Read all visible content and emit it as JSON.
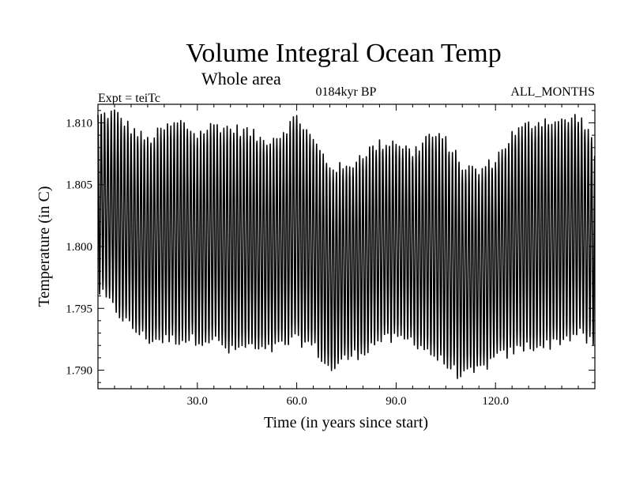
{
  "chart_data": {
    "type": "line",
    "title": "Volume Integral Ocean Temp",
    "subtitle": "Whole area",
    "experiment_label": "Expt = teiTc",
    "period_label": "0184kyr BP",
    "months_label": "ALL_MONTHS",
    "xlabel": "Time (in years since start)",
    "ylabel": "Temperature (in C)",
    "xlim": [
      0,
      150
    ],
    "ylim": [
      1.7885,
      1.8115
    ],
    "xticks": [
      30,
      60,
      90,
      120
    ],
    "xtick_labels": [
      "30.0",
      "60.0",
      "90.0",
      "120.0"
    ],
    "yticks": [
      1.79,
      1.795,
      1.8,
      1.805,
      1.81
    ],
    "ytick_labels": [
      "1.790",
      "1.795",
      "1.800",
      "1.805",
      "1.810"
    ],
    "grid": false,
    "series": [
      {
        "color": "#000000",
        "period_years": 1,
        "envelope": {
          "x": [
            0,
            5,
            10,
            15,
            20,
            25,
            30,
            35,
            40,
            45,
            50,
            55,
            60,
            65,
            70,
            75,
            80,
            85,
            90,
            95,
            100,
            105,
            110,
            115,
            120,
            125,
            130,
            135,
            140,
            145,
            150
          ],
          "max": [
            1.8105,
            1.8108,
            1.8095,
            1.8085,
            1.8095,
            1.81,
            1.809,
            1.8098,
            1.8095,
            1.8093,
            1.8085,
            1.809,
            1.8105,
            1.8085,
            1.8065,
            1.8062,
            1.8075,
            1.8082,
            1.8085,
            1.8075,
            1.809,
            1.8085,
            1.8065,
            1.806,
            1.807,
            1.809,
            1.8098,
            1.8102,
            1.81,
            1.8105,
            1.8085
          ],
          "min": [
            1.7965,
            1.795,
            1.7935,
            1.7925,
            1.7925,
            1.7925,
            1.7925,
            1.7925,
            1.7915,
            1.792,
            1.7915,
            1.792,
            1.7925,
            1.792,
            1.79,
            1.791,
            1.7915,
            1.7925,
            1.7925,
            1.7925,
            1.7915,
            1.7905,
            1.7895,
            1.79,
            1.791,
            1.7915,
            1.792,
            1.792,
            1.7925,
            1.793,
            1.792
          ]
        }
      }
    ]
  }
}
